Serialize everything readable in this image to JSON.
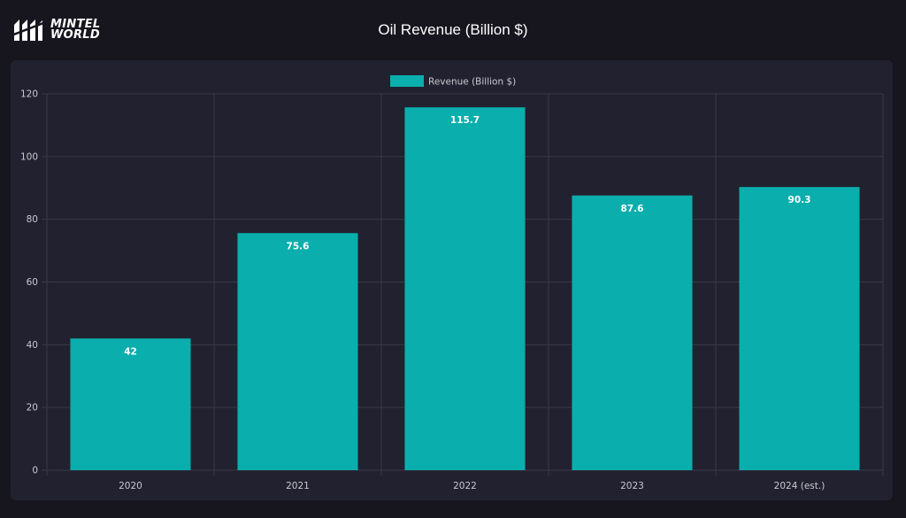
{
  "header": {
    "logo_line1": "MINTEL",
    "logo_line2": "WORLD",
    "title": "Oil Revenue (Billion $)"
  },
  "colors": {
    "background": "#17161f",
    "card": "#22212f",
    "bar": "#0aaeac",
    "grid": "#3a3948",
    "text": "#c9c9d2"
  },
  "chart_data": {
    "type": "bar",
    "categories": [
      "2020",
      "2021",
      "2022",
      "2023",
      "2024 (est.)"
    ],
    "series": [
      {
        "name": "Revenue (Billion $)",
        "values": [
          42,
          75.6,
          115.7,
          87.6,
          90.3
        ]
      }
    ],
    "data_labels": [
      "42",
      "75.6",
      "115.7",
      "87.6",
      "90.3"
    ],
    "y_ticks": [
      "0",
      "20",
      "40",
      "60",
      "80",
      "100",
      "120"
    ],
    "ylim": [
      0,
      120
    ],
    "grid": true,
    "legend_position": "top-center"
  }
}
